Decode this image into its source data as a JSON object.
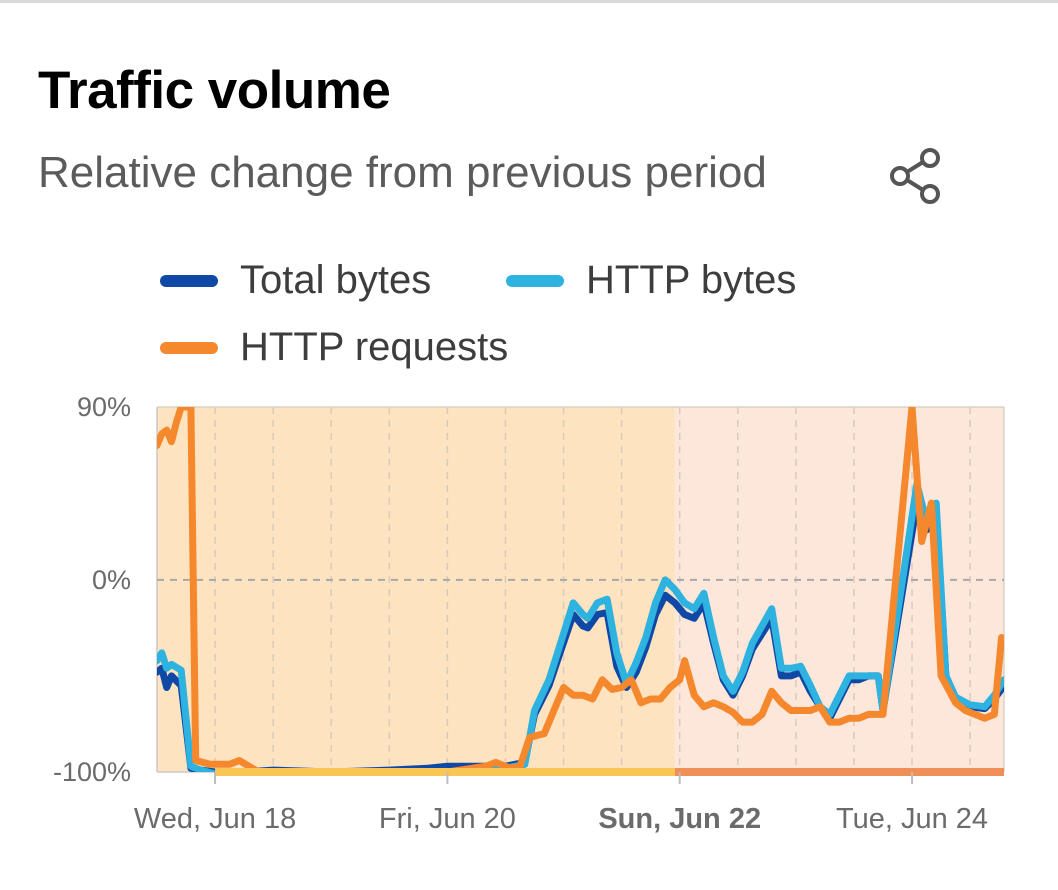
{
  "title": "Traffic volume",
  "subtitle": "Relative change from previous period",
  "share_icon": "share-icon",
  "legend": [
    {
      "label": "Total bytes",
      "color": "#1048a6"
    },
    {
      "label": "HTTP bytes",
      "color": "#2eb2df"
    },
    {
      "label": "HTTP requests",
      "color": "#f5882c"
    }
  ],
  "colors": {
    "band_light": "#fde3bf",
    "band_pink": "#fde7da",
    "bar_yellow": "#f9c653",
    "bar_orange": "#f09058"
  },
  "chart_data": {
    "type": "line",
    "ylim": [
      -100,
      90
    ],
    "y_ticks": [
      {
        "value": 90,
        "label": "90%"
      },
      {
        "value": 0,
        "label": "0%"
      },
      {
        "value": -100,
        "label": "-100%"
      }
    ],
    "x_range": [
      "2025-06-17T12:00",
      "2025-06-24T19:00"
    ],
    "x_ticks": [
      {
        "x": "2025-06-18T00:00",
        "label": "Wed, Jun 18",
        "bold": false
      },
      {
        "x": "2025-06-20T00:00",
        "label": "Fri, Jun 20",
        "bold": false
      },
      {
        "x": "2025-06-22T00:00",
        "label": "Sun, Jun 22",
        "bold": true
      },
      {
        "x": "2025-06-24T00:00",
        "label": "Tue, Jun 24",
        "bold": false
      }
    ],
    "annotation_bands": [
      {
        "from": "2025-06-18T00:00",
        "to": "2025-06-21T23:00",
        "color": "#f9c653"
      },
      {
        "from": "2025-06-21T23:00",
        "to": "2025-06-24T19:00",
        "color": "#f09058"
      }
    ],
    "series": [
      {
        "name": "Total bytes",
        "color": "#1048a6",
        "points": [
          [
            "2025-06-17T12:00",
            -48
          ],
          [
            "2025-06-17T13:00",
            -46
          ],
          [
            "2025-06-17T14:00",
            -56
          ],
          [
            "2025-06-17T15:00",
            -50
          ],
          [
            "2025-06-17T17:00",
            -55
          ],
          [
            "2025-06-17T19:00",
            -98
          ],
          [
            "2025-06-17T21:00",
            -99
          ],
          [
            "2025-06-18T00:00",
            -100
          ],
          [
            "2025-06-18T06:00",
            -100
          ],
          [
            "2025-06-18T12:00",
            -99
          ],
          [
            "2025-06-19T00:00",
            -100
          ],
          [
            "2025-06-19T12:00",
            -99
          ],
          [
            "2025-06-19T20:00",
            -98
          ],
          [
            "2025-06-20T00:00",
            -97
          ],
          [
            "2025-06-20T12:00",
            -97
          ],
          [
            "2025-06-20T16:00",
            -95
          ],
          [
            "2025-06-20T18:00",
            -70
          ],
          [
            "2025-06-20T21:00",
            -55
          ],
          [
            "2025-06-20T23:00",
            -40
          ],
          [
            "2025-06-21T02:00",
            -18
          ],
          [
            "2025-06-21T04:00",
            -24
          ],
          [
            "2025-06-21T05:00",
            -25
          ],
          [
            "2025-06-21T07:00",
            -18
          ],
          [
            "2025-06-21T09:00",
            -17
          ],
          [
            "2025-06-21T11:00",
            -45
          ],
          [
            "2025-06-21T13:00",
            -56
          ],
          [
            "2025-06-21T15:00",
            -48
          ],
          [
            "2025-06-21T17:00",
            -35
          ],
          [
            "2025-06-21T19:00",
            -18
          ],
          [
            "2025-06-21T21:00",
            -8
          ],
          [
            "2025-06-21T23:00",
            -12
          ],
          [
            "2025-06-22T01:00",
            -18
          ],
          [
            "2025-06-22T03:00",
            -20
          ],
          [
            "2025-06-22T05:00",
            -12
          ],
          [
            "2025-06-22T07:00",
            -33
          ],
          [
            "2025-06-22T09:00",
            -52
          ],
          [
            "2025-06-22T11:00",
            -60
          ],
          [
            "2025-06-22T13:00",
            -50
          ],
          [
            "2025-06-22T15:00",
            -36
          ],
          [
            "2025-06-22T17:00",
            -28
          ],
          [
            "2025-06-22T19:00",
            -20
          ],
          [
            "2025-06-22T21:00",
            -50
          ],
          [
            "2025-06-22T23:00",
            -50
          ],
          [
            "2025-06-23T01:00",
            -48
          ],
          [
            "2025-06-23T03:00",
            -58
          ],
          [
            "2025-06-23T05:00",
            -66
          ],
          [
            "2025-06-23T07:00",
            -72
          ],
          [
            "2025-06-23T09:00",
            -62
          ],
          [
            "2025-06-23T11:00",
            -52
          ],
          [
            "2025-06-23T13:00",
            -52
          ],
          [
            "2025-06-23T15:00",
            -50
          ],
          [
            "2025-06-23T17:00",
            -50
          ],
          [
            "2025-06-23T18:00",
            -68
          ],
          [
            "2025-06-24T01:00",
            40
          ],
          [
            "2025-06-24T03:00",
            26
          ],
          [
            "2025-06-24T05:00",
            36
          ],
          [
            "2025-06-24T07:00",
            -50
          ],
          [
            "2025-06-24T09:00",
            -62
          ],
          [
            "2025-06-24T12:00",
            -66
          ],
          [
            "2025-06-24T15:00",
            -67
          ],
          [
            "2025-06-24T17:00",
            -62
          ],
          [
            "2025-06-24T19:00",
            -55
          ]
        ]
      },
      {
        "name": "HTTP bytes",
        "color": "#2eb2df",
        "points": [
          [
            "2025-06-17T12:00",
            -42
          ],
          [
            "2025-06-17T13:00",
            -38
          ],
          [
            "2025-06-17T14:00",
            -46
          ],
          [
            "2025-06-17T15:00",
            -44
          ],
          [
            "2025-06-17T17:00",
            -47
          ],
          [
            "2025-06-17T19:00",
            -97
          ],
          [
            "2025-06-17T21:00",
            -99
          ],
          [
            "2025-06-18T00:00",
            -101
          ],
          [
            "2025-06-18T06:00",
            -101
          ],
          [
            "2025-06-18T12:00",
            -100
          ],
          [
            "2025-06-19T00:00",
            -100
          ],
          [
            "2025-06-19T12:00",
            -101
          ],
          [
            "2025-06-19T20:00",
            -100
          ],
          [
            "2025-06-20T00:00",
            -100
          ],
          [
            "2025-06-20T12:00",
            -98
          ],
          [
            "2025-06-20T16:00",
            -96
          ],
          [
            "2025-06-20T18:00",
            -68
          ],
          [
            "2025-06-20T21:00",
            -52
          ],
          [
            "2025-06-20T23:00",
            -36
          ],
          [
            "2025-06-21T02:00",
            -12
          ],
          [
            "2025-06-21T04:00",
            -18
          ],
          [
            "2025-06-21T05:00",
            -20
          ],
          [
            "2025-06-21T07:00",
            -12
          ],
          [
            "2025-06-21T09:00",
            -10
          ],
          [
            "2025-06-21T11:00",
            -38
          ],
          [
            "2025-06-21T13:00",
            -54
          ],
          [
            "2025-06-21T15:00",
            -43
          ],
          [
            "2025-06-21T17:00",
            -30
          ],
          [
            "2025-06-21T19:00",
            -12
          ],
          [
            "2025-06-21T21:00",
            0
          ],
          [
            "2025-06-21T23:00",
            -5
          ],
          [
            "2025-06-22T01:00",
            -12
          ],
          [
            "2025-06-22T03:00",
            -15
          ],
          [
            "2025-06-22T05:00",
            -7
          ],
          [
            "2025-06-22T07:00",
            -30
          ],
          [
            "2025-06-22T09:00",
            -50
          ],
          [
            "2025-06-22T11:00",
            -58
          ],
          [
            "2025-06-22T13:00",
            -48
          ],
          [
            "2025-06-22T15:00",
            -33
          ],
          [
            "2025-06-22T17:00",
            -24
          ],
          [
            "2025-06-22T19:00",
            -15
          ],
          [
            "2025-06-22T21:00",
            -46
          ],
          [
            "2025-06-22T23:00",
            -46
          ],
          [
            "2025-06-23T01:00",
            -45
          ],
          [
            "2025-06-23T03:00",
            -55
          ],
          [
            "2025-06-23T05:00",
            -66
          ],
          [
            "2025-06-23T07:00",
            -70
          ],
          [
            "2025-06-23T09:00",
            -60
          ],
          [
            "2025-06-23T11:00",
            -50
          ],
          [
            "2025-06-23T13:00",
            -50
          ],
          [
            "2025-06-23T15:00",
            -50
          ],
          [
            "2025-06-23T17:00",
            -50
          ],
          [
            "2025-06-23T18:00",
            -68
          ],
          [
            "2025-06-24T01:00",
            50
          ],
          [
            "2025-06-24T03:00",
            30
          ],
          [
            "2025-06-24T05:00",
            40
          ],
          [
            "2025-06-24T07:00",
            -50
          ],
          [
            "2025-06-24T09:00",
            -61
          ],
          [
            "2025-06-24T12:00",
            -65
          ],
          [
            "2025-06-24T15:00",
            -66
          ],
          [
            "2025-06-24T17:00",
            -60
          ],
          [
            "2025-06-24T19:00",
            -52
          ]
        ]
      },
      {
        "name": "HTTP requests",
        "color": "#f5882c",
        "points": [
          [
            "2025-06-17T12:00",
            70
          ],
          [
            "2025-06-17T13:00",
            76
          ],
          [
            "2025-06-17T14:00",
            78
          ],
          [
            "2025-06-17T15:00",
            72
          ],
          [
            "2025-06-17T16:00",
            82
          ],
          [
            "2025-06-17T17:00",
            90
          ],
          [
            "2025-06-17T19:00",
            90
          ],
          [
            "2025-06-17T20:00",
            -94
          ],
          [
            "2025-06-17T23:00",
            -96
          ],
          [
            "2025-06-18T03:00",
            -96
          ],
          [
            "2025-06-18T05:00",
            -94
          ],
          [
            "2025-06-18T09:00",
            -100
          ],
          [
            "2025-06-18T12:00",
            -100
          ],
          [
            "2025-06-19T00:00",
            -100
          ],
          [
            "2025-06-19T12:00",
            -100
          ],
          [
            "2025-06-20T00:00",
            -100
          ],
          [
            "2025-06-20T08:00",
            -97
          ],
          [
            "2025-06-20T10:00",
            -95
          ],
          [
            "2025-06-20T13:00",
            -98
          ],
          [
            "2025-06-20T15:00",
            -97
          ],
          [
            "2025-06-20T17:00",
            -82
          ],
          [
            "2025-06-20T20:00",
            -80
          ],
          [
            "2025-06-20T22:00",
            -68
          ],
          [
            "2025-06-21T00:00",
            -56
          ],
          [
            "2025-06-21T02:00",
            -60
          ],
          [
            "2025-06-21T04:00",
            -60
          ],
          [
            "2025-06-21T06:00",
            -62
          ],
          [
            "2025-06-21T08:00",
            -52
          ],
          [
            "2025-06-21T10:00",
            -57
          ],
          [
            "2025-06-21T12:00",
            -56
          ],
          [
            "2025-06-21T14:00",
            -52
          ],
          [
            "2025-06-21T16:00",
            -64
          ],
          [
            "2025-06-21T18:00",
            -62
          ],
          [
            "2025-06-21T20:00",
            -62
          ],
          [
            "2025-06-21T22:00",
            -56
          ],
          [
            "2025-06-22T00:00",
            -52
          ],
          [
            "2025-06-22T01:00",
            -42
          ],
          [
            "2025-06-22T03:00",
            -60
          ],
          [
            "2025-06-22T05:00",
            -66
          ],
          [
            "2025-06-22T07:00",
            -64
          ],
          [
            "2025-06-22T09:00",
            -66
          ],
          [
            "2025-06-22T11:00",
            -69
          ],
          [
            "2025-06-22T13:00",
            -74
          ],
          [
            "2025-06-22T15:00",
            -74
          ],
          [
            "2025-06-22T17:00",
            -70
          ],
          [
            "2025-06-22T19:00",
            -58
          ],
          [
            "2025-06-22T21:00",
            -64
          ],
          [
            "2025-06-22T23:00",
            -68
          ],
          [
            "2025-06-23T03:00",
            -68
          ],
          [
            "2025-06-23T05:00",
            -66
          ],
          [
            "2025-06-23T07:00",
            -74
          ],
          [
            "2025-06-23T09:00",
            -74
          ],
          [
            "2025-06-23T11:00",
            -72
          ],
          [
            "2025-06-23T13:00",
            -72
          ],
          [
            "2025-06-23T15:00",
            -70
          ],
          [
            "2025-06-23T18:00",
            -70
          ],
          [
            "2025-06-24T00:00",
            90
          ],
          [
            "2025-06-24T02:00",
            20
          ],
          [
            "2025-06-24T04:00",
            40
          ],
          [
            "2025-06-24T06:00",
            -50
          ],
          [
            "2025-06-24T09:00",
            -64
          ],
          [
            "2025-06-24T11:00",
            -68
          ],
          [
            "2025-06-24T13:00",
            -70
          ],
          [
            "2025-06-24T15:00",
            -72
          ],
          [
            "2025-06-24T17:00",
            -70
          ],
          [
            "2025-06-24T18:30",
            -30
          ]
        ]
      }
    ]
  }
}
